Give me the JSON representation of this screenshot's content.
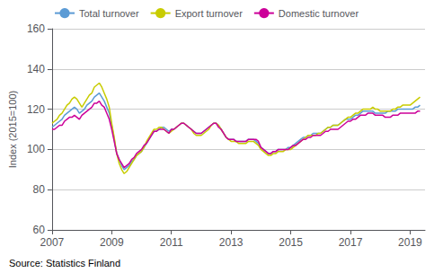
{
  "chart_data": {
    "type": "line",
    "title": "",
    "ylabel": "Index (2015=100)",
    "source": "Source: Statistics Finland",
    "legend": "upper left",
    "grid": true,
    "bg_color": "#ffffff",
    "grid_color": "#cccccc",
    "xlim": [
      2007.0,
      2019.5
    ],
    "ylim": [
      60,
      160
    ],
    "xticks": [
      2007,
      2009,
      2011,
      2013,
      2015,
      2017,
      2019
    ],
    "yticks": [
      60,
      80,
      100,
      120,
      140,
      160
    ],
    "x": [
      2007,
      2007.0833333333333,
      2007.1666666666667,
      2007.25,
      2007.3333333333333,
      2007.4166666666667,
      2007.5,
      2007.5833333333333,
      2007.6666666666667,
      2007.75,
      2007.8333333333333,
      2007.9166666666667,
      2008,
      2008.0833333333333,
      2008.1666666666667,
      2008.25,
      2008.3333333333333,
      2008.4166666666667,
      2008.5,
      2008.5833333333333,
      2008.6666666666667,
      2008.75,
      2008.8333333333333,
      2008.9166666666667,
      2009,
      2009.0833333333333,
      2009.1666666666667,
      2009.25,
      2009.3333333333333,
      2009.4166666666667,
      2009.5,
      2009.5833333333333,
      2009.6666666666667,
      2009.75,
      2009.8333333333333,
      2009.9166666666667,
      2010,
      2010.0833333333333,
      2010.1666666666667,
      2010.25,
      2010.3333333333333,
      2010.4166666666667,
      2010.5,
      2010.5833333333333,
      2010.6666666666667,
      2010.75,
      2010.8333333333333,
      2010.9166666666667,
      2011,
      2011.0833333333333,
      2011.1666666666667,
      2011.25,
      2011.3333333333333,
      2011.4166666666667,
      2011.5,
      2011.5833333333333,
      2011.6666666666667,
      2011.75,
      2011.8333333333333,
      2011.9166666666667,
      2012,
      2012.0833333333333,
      2012.1666666666667,
      2012.25,
      2012.3333333333333,
      2012.4166666666667,
      2012.5,
      2012.5833333333333,
      2012.6666666666667,
      2012.75,
      2012.8333333333333,
      2012.9166666666667,
      2013,
      2013.0833333333333,
      2013.1666666666667,
      2013.25,
      2013.3333333333333,
      2013.4166666666667,
      2013.5,
      2013.5833333333333,
      2013.6666666666667,
      2013.75,
      2013.8333333333333,
      2013.9166666666667,
      2014,
      2014.0833333333333,
      2014.1666666666667,
      2014.25,
      2014.3333333333333,
      2014.4166666666667,
      2014.5,
      2014.5833333333333,
      2014.6666666666667,
      2014.75,
      2014.8333333333333,
      2014.9166666666667,
      2015,
      2015.0833333333333,
      2015.1666666666667,
      2015.25,
      2015.3333333333333,
      2015.4166666666667,
      2015.5,
      2015.5833333333333,
      2015.6666666666667,
      2015.75,
      2015.8333333333333,
      2015.9166666666667,
      2016,
      2016.0833333333333,
      2016.1666666666667,
      2016.25,
      2016.3333333333333,
      2016.4166666666667,
      2016.5,
      2016.5833333333333,
      2016.6666666666667,
      2016.75,
      2016.8333333333333,
      2016.9166666666667,
      2017,
      2017.0833333333333,
      2017.1666666666667,
      2017.25,
      2017.3333333333333,
      2017.4166666666667,
      2017.5,
      2017.5833333333333,
      2017.6666666666667,
      2017.75,
      2017.8333333333333,
      2017.9166666666667,
      2018,
      2018.0833333333333,
      2018.1666666666667,
      2018.25,
      2018.3333333333333,
      2018.4166666666667,
      2018.5,
      2018.5833333333333,
      2018.6666666666667,
      2018.75,
      2018.8333333333333,
      2018.9166666666667,
      2019,
      2019.0833333333333,
      2019.1666666666667,
      2019.25,
      2019.3333333333333
    ],
    "series": [
      {
        "name": "Total turnover",
        "color": "#5b9bd5",
        "values": [
          111,
          112,
          113,
          114,
          115,
          117,
          118,
          119,
          120,
          121,
          120,
          118,
          119,
          120,
          122,
          123,
          124,
          126,
          127,
          128,
          126,
          124,
          121,
          118,
          112,
          105,
          98,
          95,
          92,
          90,
          91,
          92,
          94,
          95,
          97,
          98,
          99,
          101,
          103,
          105,
          107,
          109,
          109,
          110,
          111,
          111,
          110,
          109,
          110,
          110,
          111,
          112,
          113,
          113,
          112,
          111,
          110,
          109,
          108,
          108,
          108,
          109,
          110,
          111,
          112,
          113,
          113,
          112,
          110,
          108,
          106,
          105,
          105,
          105,
          104,
          104,
          104,
          104,
          104,
          105,
          105,
          105,
          104,
          103,
          101,
          100,
          99,
          98,
          98,
          99,
          99,
          100,
          100,
          100,
          100,
          101,
          101,
          102,
          103,
          104,
          105,
          106,
          106,
          107,
          107,
          108,
          108,
          108,
          108,
          109,
          110,
          111,
          111,
          112,
          112,
          112,
          113,
          114,
          115,
          115,
          115,
          116,
          117,
          117,
          118,
          119,
          119,
          119,
          119,
          119,
          118,
          118,
          118,
          118,
          118,
          119,
          119,
          119,
          119,
          120,
          120,
          120,
          120,
          120,
          120,
          120,
          121,
          121,
          122
        ]
      },
      {
        "name": "Export turnover",
        "color": "#c8cc00",
        "values": [
          113,
          114,
          115,
          117,
          118,
          120,
          122,
          123,
          125,
          126,
          125,
          123,
          121,
          123,
          125,
          127,
          128,
          131,
          132,
          133,
          131,
          128,
          125,
          121,
          113,
          106,
          98,
          93,
          90,
          88,
          89,
          91,
          93,
          95,
          97,
          98,
          99,
          101,
          104,
          106,
          108,
          110,
          110,
          111,
          111,
          110,
          109,
          108,
          109,
          110,
          111,
          112,
          113,
          113,
          112,
          111,
          110,
          108,
          107,
          107,
          107,
          108,
          109,
          110,
          112,
          113,
          113,
          112,
          110,
          108,
          106,
          105,
          104,
          104,
          104,
          103,
          103,
          103,
          103,
          104,
          104,
          104,
          103,
          102,
          100,
          99,
          98,
          97,
          97,
          98,
          98,
          99,
          99,
          99,
          100,
          100,
          100,
          101,
          102,
          103,
          104,
          105,
          106,
          107,
          107,
          107,
          107,
          108,
          108,
          109,
          110,
          111,
          111,
          112,
          112,
          112,
          113,
          114,
          115,
          116,
          116,
          117,
          118,
          118,
          119,
          120,
          120,
          120,
          120,
          121,
          120,
          120,
          119,
          119,
          119,
          119,
          119,
          120,
          120,
          121,
          121,
          122,
          122,
          122,
          122,
          123,
          124,
          125,
          126
        ]
      },
      {
        "name": "Domestic turnover",
        "color": "#cc0099",
        "values": [
          110,
          110,
          111,
          112,
          112,
          114,
          115,
          116,
          116,
          117,
          116,
          115,
          117,
          118,
          119,
          120,
          121,
          123,
          123,
          124,
          122,
          121,
          118,
          115,
          110,
          104,
          98,
          95,
          93,
          91,
          92,
          93,
          95,
          96,
          98,
          99,
          100,
          102,
          103,
          105,
          107,
          109,
          109,
          110,
          110,
          110,
          109,
          108,
          110,
          110,
          111,
          112,
          113,
          113,
          112,
          111,
          110,
          109,
          108,
          108,
          108,
          109,
          110,
          111,
          112,
          113,
          113,
          111,
          110,
          108,
          106,
          105,
          105,
          105,
          104,
          104,
          104,
          104,
          104,
          105,
          105,
          105,
          105,
          104,
          101,
          100,
          99,
          98,
          98,
          99,
          99,
          100,
          100,
          100,
          100,
          100,
          101,
          102,
          102,
          103,
          104,
          105,
          105,
          106,
          106,
          107,
          107,
          107,
          107,
          108,
          109,
          109,
          110,
          110,
          110,
          110,
          111,
          112,
          113,
          114,
          114,
          115,
          115,
          116,
          117,
          117,
          117,
          118,
          118,
          118,
          117,
          117,
          117,
          117,
          116,
          116,
          116,
          117,
          117,
          117,
          118,
          118,
          118,
          118,
          118,
          118,
          118,
          119,
          119
        ]
      }
    ]
  }
}
